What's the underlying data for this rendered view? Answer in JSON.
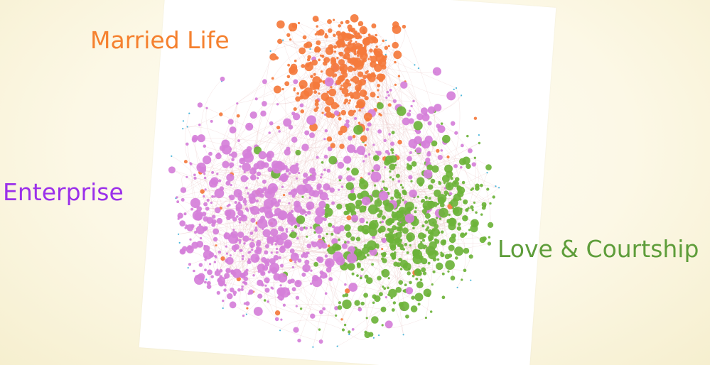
{
  "clusters": {
    "married": {
      "label": "Married Life",
      "color": "#f5812f"
    },
    "enterprise": {
      "label": "Enterprise",
      "color": "#9b30ea"
    },
    "love": {
      "label": "Love & Courtship",
      "color": "#5e9d3a"
    }
  },
  "node_colors": {
    "married": "#f47a3c",
    "enterprise": "#d57fd9",
    "love": "#6cb33a",
    "minor": "#3ab0d8"
  },
  "edge_color": "#e7bdbd"
}
